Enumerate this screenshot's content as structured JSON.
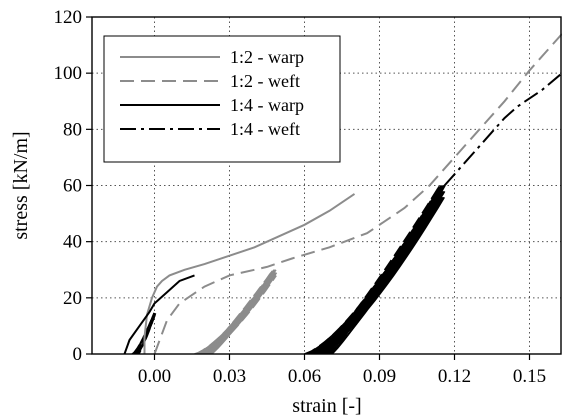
{
  "chart_data": {
    "type": "line",
    "title": "",
    "xlabel": "strain [-]",
    "ylabel": "stress [kN/m]",
    "xlim": [
      -0.025,
      0.163
    ],
    "ylim": [
      0,
      120
    ],
    "xticks": [
      0.0,
      0.03,
      0.06,
      0.09,
      0.12,
      0.15
    ],
    "xtick_labels": [
      "0.00",
      "0.03",
      "0.06",
      "0.09",
      "0.12",
      "0.15"
    ],
    "yticks": [
      0,
      20,
      40,
      60,
      80,
      100,
      120
    ],
    "ytick_labels": [
      "0",
      "20",
      "40",
      "60",
      "80",
      "100",
      "120"
    ],
    "grid": true,
    "legend_position": "top-left",
    "series": [
      {
        "name": "1:2 - warp",
        "color": "#8c8c8c",
        "dash": "solid",
        "x": [
          -0.004,
          -0.004,
          -0.003,
          -0.001,
          0.001,
          0.003,
          0.006,
          0.012,
          0.02,
          0.03,
          0.04,
          0.05,
          0.06,
          0.07,
          0.08
        ],
        "y": [
          0,
          6,
          14,
          20,
          24,
          26,
          28,
          30,
          32,
          35,
          38,
          42,
          46,
          51,
          57
        ]
      },
      {
        "name": "1:2 - weft",
        "color": "#8c8c8c",
        "dash": "dashed",
        "x": [
          0.0,
          0.005,
          0.01,
          0.02,
          0.03,
          0.04,
          0.045,
          0.055,
          0.07,
          0.085,
          0.1,
          0.11,
          0.12,
          0.13,
          0.14,
          0.15,
          0.163
        ],
        "y": [
          0,
          12,
          18,
          24,
          28,
          30,
          31,
          34,
          38,
          43,
          52,
          60,
          70,
          80,
          90,
          101,
          114
        ]
      },
      {
        "name": "1:4 - warp",
        "color": "#000000",
        "dash": "solid",
        "x": [
          -0.012,
          -0.01,
          -0.006,
          -0.002,
          0.0,
          0.005,
          0.01,
          0.016
        ],
        "y": [
          0,
          5,
          10,
          15,
          18,
          22,
          26,
          28
        ]
      },
      {
        "name": "1:4 - weft",
        "color": "#000000",
        "dash": "dashdot",
        "x": [
          0.116,
          0.12,
          0.125,
          0.13,
          0.135,
          0.14,
          0.145,
          0.15,
          0.155,
          0.163
        ],
        "y": [
          60,
          64,
          69,
          74,
          79,
          84,
          88,
          91,
          94,
          100
        ]
      }
    ],
    "hysteresis_bands": [
      {
        "color": "#8c8c8c",
        "x_start": 0.018,
        "x_peak": 0.048,
        "y_peak": 30,
        "loops": 14,
        "spread": 0.004
      },
      {
        "color": "#000000",
        "x_start": 0.063,
        "x_peak": 0.115,
        "y_peak": 60,
        "loops": 18,
        "spread": 0.006
      },
      {
        "color": "#000000",
        "x_start": -0.008,
        "x_peak": 0.0,
        "y_peak": 15,
        "loops": 5,
        "spread": 0.002
      }
    ]
  }
}
